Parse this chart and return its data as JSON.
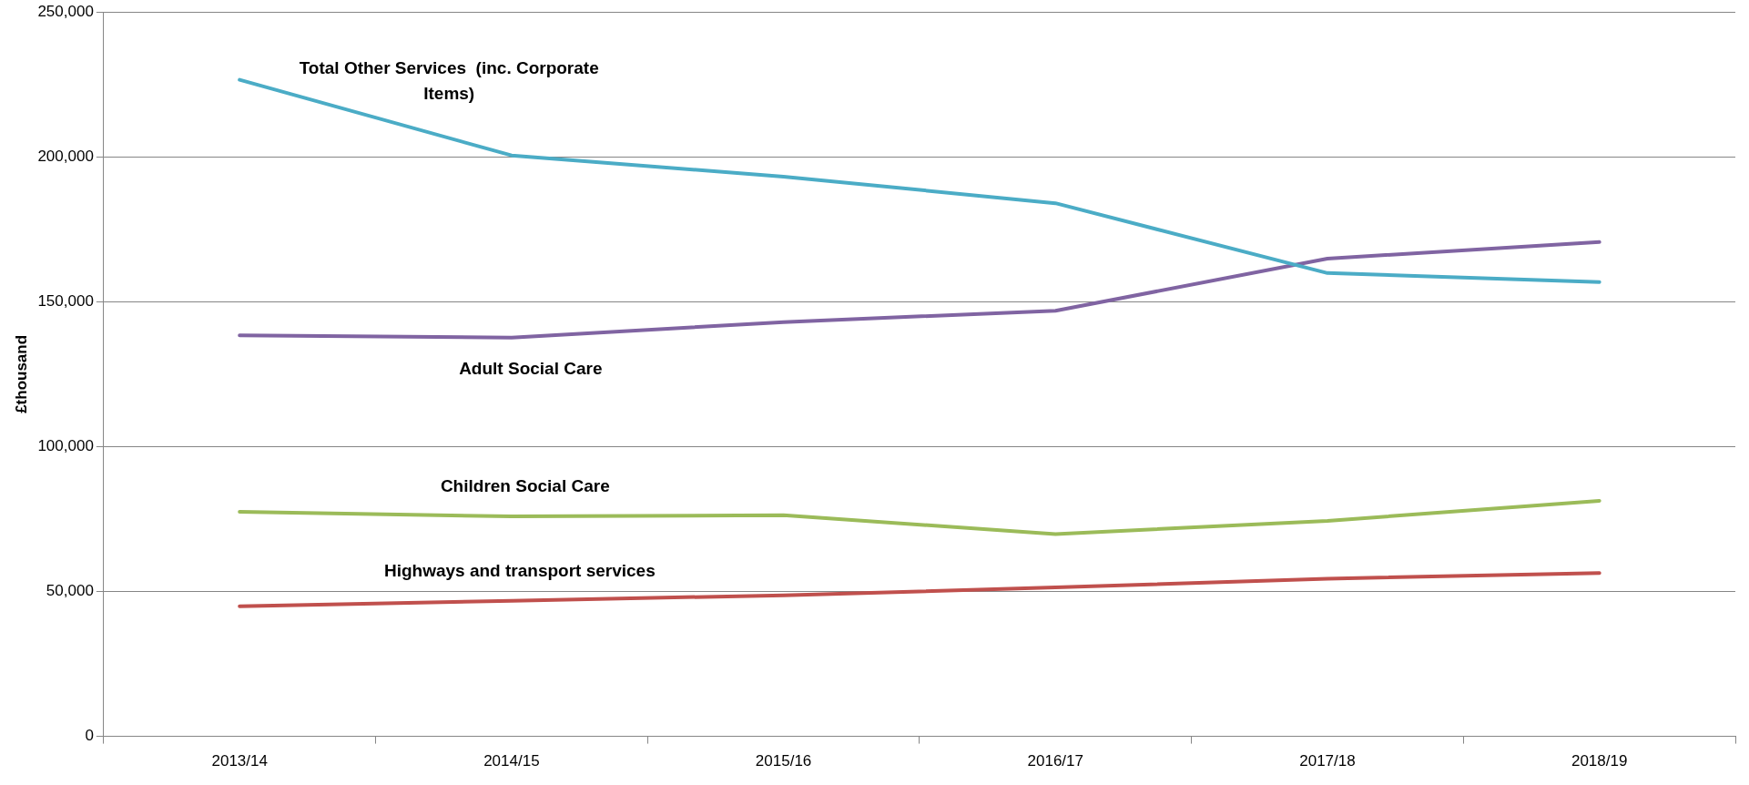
{
  "chart_data": {
    "type": "line",
    "ylabel": "£thousand",
    "categories": [
      "2013/14",
      "2014/15",
      "2015/16",
      "2016/17",
      "2017/18",
      "2018/19"
    ],
    "series": [
      {
        "name": "Total Other Services  (inc. Corporate Items)",
        "color": "#4bacc6",
        "values": [
          226600,
          200500,
          193200,
          184000,
          159900,
          156800
        ]
      },
      {
        "name": "Adult Social Care",
        "color": "#8064a2",
        "values": [
          138400,
          137600,
          143000,
          146900,
          164900,
          170600
        ]
      },
      {
        "name": "Children Social Care",
        "color": "#9bbb59",
        "values": [
          77500,
          75900,
          76300,
          69800,
          74400,
          81300
        ]
      },
      {
        "name": "Highways and transport services",
        "color": "#c0504d",
        "values": [
          44900,
          46800,
          48700,
          51400,
          54400,
          56400
        ]
      }
    ],
    "ylim": [
      0,
      250000
    ],
    "yticks": [
      0,
      {
        "value": 50000,
        "label": "50,000"
      },
      {
        "value": 100000,
        "label": "100,000"
      },
      {
        "value": 150000,
        "label": "150,000"
      },
      {
        "value": 200000,
        "label": "200,000"
      },
      {
        "value": 250000,
        "label": "250,000"
      }
    ],
    "grid": "y",
    "legend": false,
    "marker": "none",
    "line_style": "solid"
  }
}
